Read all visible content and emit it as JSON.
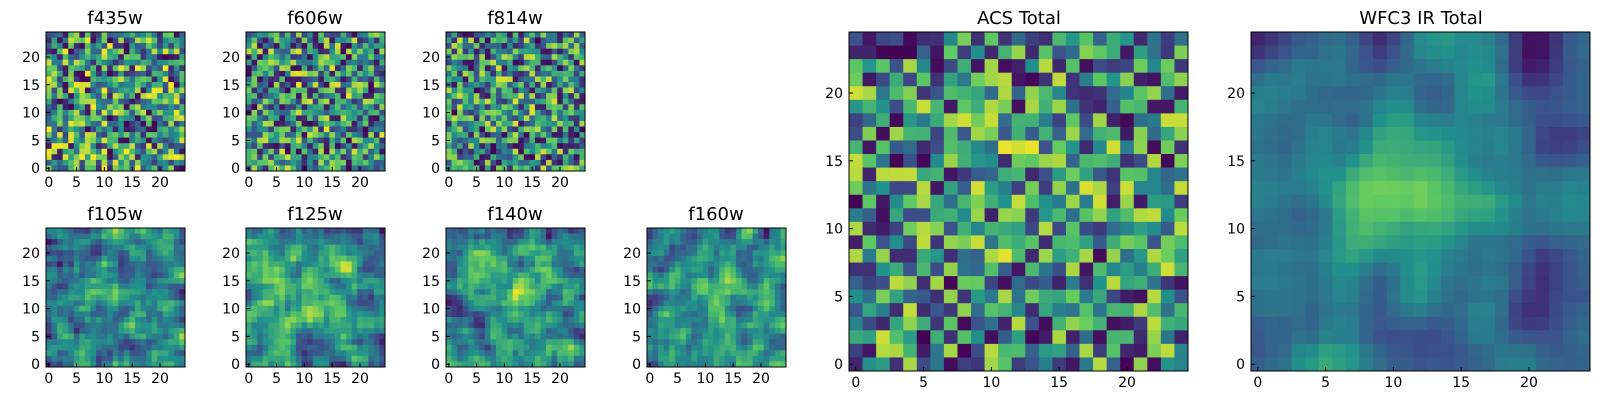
{
  "chart_data": [
    {
      "type": "heatmap",
      "title": "f435w",
      "seed": 11,
      "smooth": 0,
      "blob": 0,
      "xticks": [
        0,
        5,
        10,
        15,
        20
      ],
      "yticks": [
        0,
        5,
        10,
        15,
        20
      ],
      "grid_size": 25
    },
    {
      "type": "heatmap",
      "title": "f606w",
      "seed": 23,
      "smooth": 0,
      "blob": 0.1,
      "xticks": [
        0,
        5,
        10,
        15,
        20
      ],
      "yticks": [
        0,
        5,
        10,
        15,
        20
      ],
      "grid_size": 25
    },
    {
      "type": "heatmap",
      "title": "f814w",
      "seed": 37,
      "smooth": 0,
      "blob": 0.15,
      "xticks": [
        0,
        5,
        10,
        15,
        20
      ],
      "yticks": [
        0,
        5,
        10,
        15,
        20
      ],
      "grid_size": 25
    },
    {
      "type": "heatmap",
      "title": "f105w",
      "seed": 41,
      "smooth": 1,
      "blob": 0.35,
      "xticks": [
        0,
        5,
        10,
        15,
        20
      ],
      "yticks": [
        0,
        5,
        10,
        15,
        20
      ],
      "grid_size": 25
    },
    {
      "type": "heatmap",
      "title": "f125w",
      "seed": 53,
      "smooth": 1,
      "blob": 0.3,
      "xticks": [
        0,
        5,
        10,
        15,
        20
      ],
      "yticks": [
        0,
        5,
        10,
        15,
        20
      ],
      "grid_size": 25
    },
    {
      "type": "heatmap",
      "title": "f140w",
      "seed": 67,
      "smooth": 1,
      "blob": 0.4,
      "xticks": [
        0,
        5,
        10,
        15,
        20
      ],
      "yticks": [
        0,
        5,
        10,
        15,
        20
      ],
      "grid_size": 25
    },
    {
      "type": "heatmap",
      "title": "f160w",
      "seed": 79,
      "smooth": 1,
      "blob": 0.45,
      "xticks": [
        0,
        5,
        10,
        15,
        20
      ],
      "yticks": [
        0,
        5,
        10,
        15,
        20
      ],
      "grid_size": 25
    },
    {
      "type": "heatmap",
      "title": "ACS Total",
      "seed": 97,
      "smooth": 0,
      "blob": 0.15,
      "xticks": [
        0,
        5,
        10,
        15,
        20
      ],
      "yticks": [
        0,
        5,
        10,
        15,
        20
      ],
      "grid_size": 25
    },
    {
      "type": "heatmap",
      "title": "WFC3 IR Total",
      "seed": 131,
      "smooth": 2,
      "blob": 0.9,
      "xticks": [
        0,
        5,
        10,
        15,
        20
      ],
      "yticks": [
        0,
        5,
        10,
        15,
        20
      ],
      "grid_size": 25
    }
  ],
  "colormap": [
    "#440154",
    "#3b528b",
    "#21918c",
    "#5ec962",
    "#fde725"
  ]
}
